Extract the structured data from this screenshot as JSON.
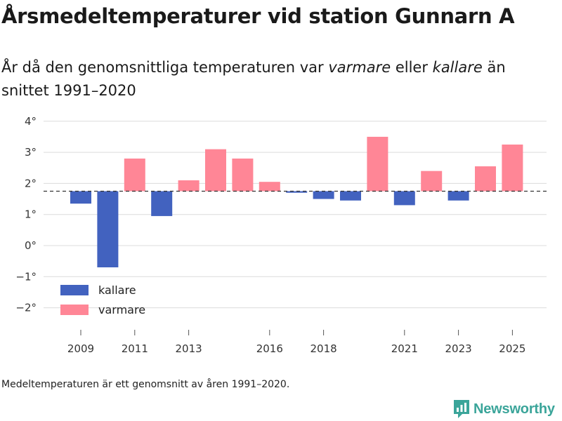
{
  "header": {
    "title": "Årsmedeltemperaturer vid station Gunnarn A",
    "subtitle_before": "År då den genomsnittliga temperaturen var ",
    "subtitle_warm": "varmare",
    "subtitle_middle": " eller ",
    "subtitle_cold": "kallare",
    "subtitle_after": " än snittet 1991–2020"
  },
  "footer": {
    "note": "Medeltemperaturen är ett genomsnitt av åren 1991–2020.",
    "brand": "Newsworthy"
  },
  "colors": {
    "cold": "#4262bf",
    "warm": "#ff8696",
    "grid": "#dcdcdc",
    "baseline": "#333333",
    "brand": "#3ba59a"
  },
  "chart_data": {
    "type": "bar",
    "title": "Årsmedeltemperaturer vid station Gunnarn A",
    "xlabel": "",
    "ylabel": "",
    "baseline_value": 1.75,
    "ylim": [
      -2.7,
      4.3
    ],
    "y_ticks": [
      4,
      3,
      2,
      1,
      0,
      -1,
      -2
    ],
    "y_tick_labels": [
      "4°",
      "3°",
      "2°",
      "1°",
      "0°",
      "−1°",
      "−2°"
    ],
    "x_tick_years": [
      2009,
      2011,
      2013,
      2016,
      2018,
      2021,
      2023,
      2025
    ],
    "legend": [
      {
        "key": "cold",
        "label": "kallare"
      },
      {
        "key": "warm",
        "label": "varmare"
      }
    ],
    "legend_position": "bottom-left",
    "series": [
      {
        "name": "Årsmedeltemperatur",
        "values": [
          {
            "year": 2009,
            "value": 1.35
          },
          {
            "year": 2010,
            "value": -0.7
          },
          {
            "year": 2011,
            "value": 2.8
          },
          {
            "year": 2012,
            "value": 0.95
          },
          {
            "year": 2013,
            "value": 2.1
          },
          {
            "year": 2014,
            "value": 3.1
          },
          {
            "year": 2015,
            "value": 2.8
          },
          {
            "year": 2016,
            "value": 2.05
          },
          {
            "year": 2017,
            "value": 1.7
          },
          {
            "year": 2018,
            "value": 1.5
          },
          {
            "year": 2019,
            "value": 1.45
          },
          {
            "year": 2020,
            "value": 3.5
          },
          {
            "year": 2021,
            "value": 1.3
          },
          {
            "year": 2022,
            "value": 2.4
          },
          {
            "year": 2023,
            "value": 1.45
          },
          {
            "year": 2024,
            "value": 2.55
          },
          {
            "year": 2025,
            "value": 3.25
          }
        ]
      }
    ]
  }
}
